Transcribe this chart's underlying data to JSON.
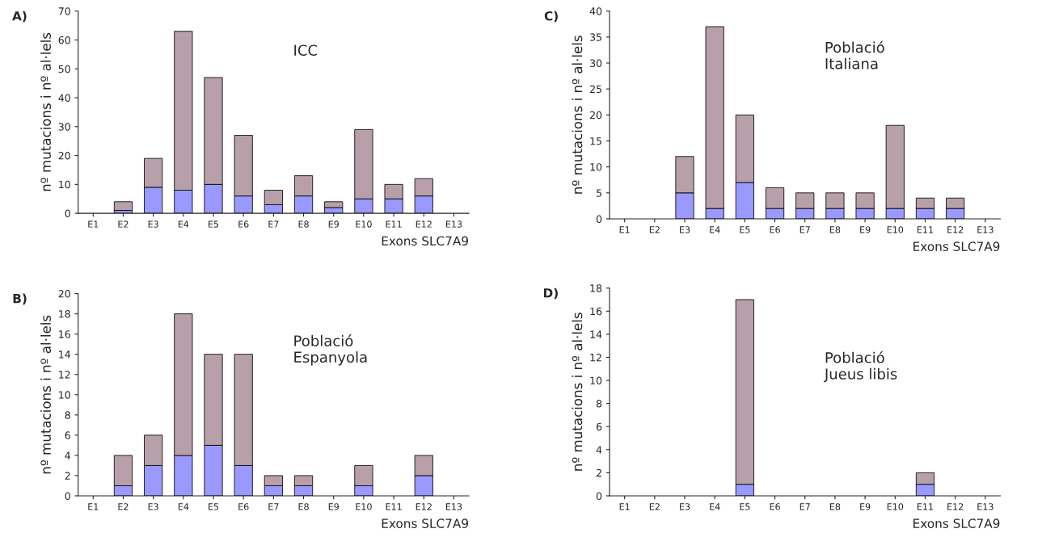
{
  "chart_data": [
    {
      "type": "bar",
      "title": "A)",
      "xlabel": "Exons SLC7A9",
      "ylabel": "nº mutacions i nº al·lels",
      "annotations": [
        "ICC"
      ],
      "stacked": true,
      "categories": [
        "E1",
        "E2",
        "E3",
        "E4",
        "E5",
        "E6",
        "E7",
        "E8",
        "E9",
        "E10",
        "E11",
        "E12",
        "E13"
      ],
      "series": [
        {
          "color": "#9999ff",
          "values": [
            0,
            1,
            9,
            8,
            10,
            6,
            3,
            6,
            2,
            5,
            5,
            6,
            0
          ]
        },
        {
          "color": "#b8a0aa",
          "values": [
            0,
            3,
            10,
            55,
            37,
            21,
            5,
            7,
            2,
            24,
            5,
            6,
            0
          ]
        }
      ],
      "ylim": [
        0,
        70
      ],
      "yticks": [
        0,
        10,
        20,
        30,
        40,
        50,
        60,
        70
      ],
      "grid": false,
      "legend": false
    },
    {
      "type": "bar",
      "title": "C)",
      "xlabel": "Exons SLC7A9",
      "ylabel": "nº mutacions i nº al·lels",
      "annotations": [
        "Població\nItaliana"
      ],
      "stacked": true,
      "categories": [
        "E1",
        "E2",
        "E3",
        "E4",
        "E5",
        "E6",
        "E7",
        "E8",
        "E9",
        "E10",
        "E11",
        "E12",
        "E13"
      ],
      "series": [
        {
          "color": "#9999ff",
          "values": [
            0,
            0,
            5,
            2,
            7,
            2,
            2,
            2,
            2,
            2,
            2,
            2,
            0
          ]
        },
        {
          "color": "#b8a0aa",
          "values": [
            0,
            0,
            7,
            35,
            13,
            4,
            3,
            3,
            3,
            16,
            2,
            2,
            0
          ]
        }
      ],
      "ylim": [
        0,
        40
      ],
      "yticks": [
        0,
        5,
        10,
        15,
        20,
        25,
        30,
        35,
        40
      ],
      "grid": false,
      "legend": false
    },
    {
      "type": "bar",
      "title": "B)",
      "xlabel": "Exons SLC7A9",
      "ylabel": "nº mutacions i nº al·lels",
      "annotations": [
        "Població\nEspanyola"
      ],
      "stacked": true,
      "categories": [
        "E1",
        "E2",
        "E3",
        "E4",
        "E5",
        "E6",
        "E7",
        "E8",
        "E9",
        "E10",
        "E11",
        "E12",
        "E13"
      ],
      "series": [
        {
          "color": "#9999ff",
          "values": [
            0,
            1,
            3,
            4,
            5,
            3,
            1,
            1,
            0,
            1,
            0,
            2,
            0
          ]
        },
        {
          "color": "#b8a0aa",
          "values": [
            0,
            3,
            3,
            14,
            9,
            11,
            1,
            1,
            0,
            2,
            0,
            2,
            0
          ]
        }
      ],
      "ylim": [
        0,
        20
      ],
      "yticks": [
        0,
        2,
        4,
        6,
        8,
        10,
        12,
        14,
        16,
        18,
        20
      ],
      "grid": false,
      "legend": false
    },
    {
      "type": "bar",
      "title": "D)",
      "xlabel": "Exons SLC7A9",
      "ylabel": "nº mutacions i nº al·lels",
      "annotations": [
        "Població\nJueus libis"
      ],
      "stacked": true,
      "categories": [
        "E1",
        "E2",
        "E3",
        "E4",
        "E5",
        "E6",
        "E7",
        "E8",
        "E9",
        "E10",
        "E11",
        "E12",
        "E13"
      ],
      "series": [
        {
          "color": "#9999ff",
          "values": [
            0,
            0,
            0,
            0,
            1,
            0,
            0,
            0,
            0,
            0,
            1,
            0,
            0
          ]
        },
        {
          "color": "#b8a0aa",
          "values": [
            0,
            0,
            0,
            0,
            16,
            0,
            0,
            0,
            0,
            0,
            1,
            0,
            0
          ]
        }
      ],
      "ylim": [
        0,
        18
      ],
      "yticks": [
        0,
        2,
        4,
        6,
        8,
        10,
        12,
        14,
        16,
        18
      ],
      "grid": false,
      "legend": false
    }
  ]
}
